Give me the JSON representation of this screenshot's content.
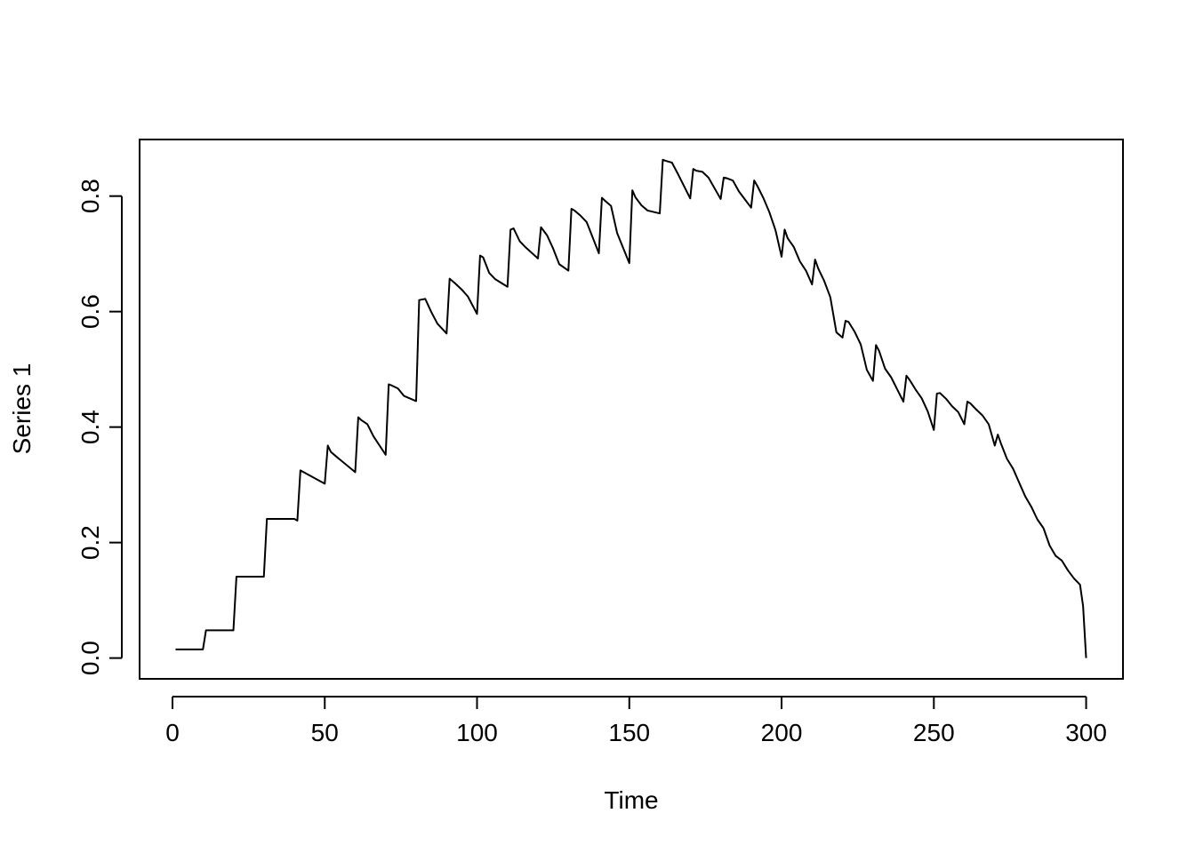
{
  "chart_data": {
    "type": "line",
    "title": "",
    "xlabel": "Time",
    "ylabel": "Series 1",
    "xlim": [
      -10.8,
      312.1
    ],
    "ylim": [
      -0.036,
      0.898
    ],
    "xticks": [
      0,
      50,
      100,
      150,
      200,
      250,
      300
    ],
    "yticks": [
      0.0,
      0.2,
      0.4,
      0.6,
      0.8
    ],
    "xtick_labels": [
      "0",
      "50",
      "100",
      "150",
      "200",
      "250",
      "300"
    ],
    "ytick_labels": [
      "0.0",
      "0.2",
      "0.4",
      "0.6",
      "0.8"
    ],
    "line_color": "#000000",
    "grid": false,
    "series": [
      {
        "x": [
          1,
          10,
          11,
          20,
          21,
          30,
          31,
          40,
          41,
          42,
          50,
          51,
          52,
          54,
          60,
          61,
          62,
          64,
          66,
          70,
          71,
          72,
          74,
          76,
          80,
          81,
          83,
          85,
          87,
          90,
          91,
          93,
          95,
          97,
          100,
          101,
          102,
          104,
          106,
          110,
          111,
          112,
          114,
          116,
          120,
          121,
          123,
          125,
          127,
          130,
          131,
          132,
          134,
          136,
          140,
          141,
          142,
          144,
          146,
          150,
          151,
          152,
          154,
          156,
          160,
          161,
          162,
          164,
          166,
          170,
          171,
          172,
          174,
          176,
          180,
          181,
          182,
          184,
          186,
          190,
          191,
          192,
          194,
          196,
          198,
          200,
          201,
          202,
          204,
          206,
          208,
          210,
          211,
          212,
          214,
          216,
          218,
          220,
          221,
          222,
          224,
          226,
          228,
          230,
          231,
          232,
          234,
          236,
          238,
          240,
          241,
          242,
          244,
          246,
          248,
          250,
          251,
          252,
          254,
          256,
          258,
          260,
          261,
          262,
          264,
          266,
          268,
          270,
          271,
          272,
          274,
          276,
          278,
          280,
          282,
          284,
          286,
          288,
          290,
          292,
          294,
          296,
          298,
          299,
          300
        ],
        "y": [
          0.015,
          0.015,
          0.048,
          0.048,
          0.141,
          0.141,
          0.241,
          0.241,
          0.238,
          0.325,
          0.302,
          0.368,
          0.357,
          0.348,
          0.322,
          0.417,
          0.412,
          0.405,
          0.384,
          0.352,
          0.474,
          0.472,
          0.467,
          0.454,
          0.445,
          0.62,
          0.622,
          0.599,
          0.579,
          0.562,
          0.657,
          0.648,
          0.638,
          0.626,
          0.596,
          0.697,
          0.694,
          0.667,
          0.656,
          0.643,
          0.742,
          0.744,
          0.722,
          0.711,
          0.692,
          0.746,
          0.732,
          0.709,
          0.682,
          0.671,
          0.778,
          0.775,
          0.766,
          0.755,
          0.701,
          0.797,
          0.792,
          0.783,
          0.736,
          0.684,
          0.81,
          0.798,
          0.784,
          0.775,
          0.77,
          0.863,
          0.861,
          0.858,
          0.838,
          0.796,
          0.847,
          0.844,
          0.842,
          0.832,
          0.795,
          0.832,
          0.831,
          0.827,
          0.808,
          0.78,
          0.827,
          0.818,
          0.797,
          0.772,
          0.741,
          0.695,
          0.742,
          0.727,
          0.712,
          0.687,
          0.671,
          0.647,
          0.69,
          0.675,
          0.653,
          0.625,
          0.564,
          0.555,
          0.584,
          0.582,
          0.565,
          0.543,
          0.499,
          0.48,
          0.542,
          0.532,
          0.501,
          0.486,
          0.465,
          0.444,
          0.489,
          0.482,
          0.465,
          0.45,
          0.427,
          0.395,
          0.458,
          0.459,
          0.449,
          0.436,
          0.426,
          0.405,
          0.444,
          0.441,
          0.43,
          0.42,
          0.405,
          0.368,
          0.387,
          0.372,
          0.345,
          0.328,
          0.304,
          0.28,
          0.262,
          0.24,
          0.225,
          0.195,
          0.177,
          0.169,
          0.152,
          0.138,
          0.127,
          0.09,
          0.0
        ]
      }
    ]
  }
}
